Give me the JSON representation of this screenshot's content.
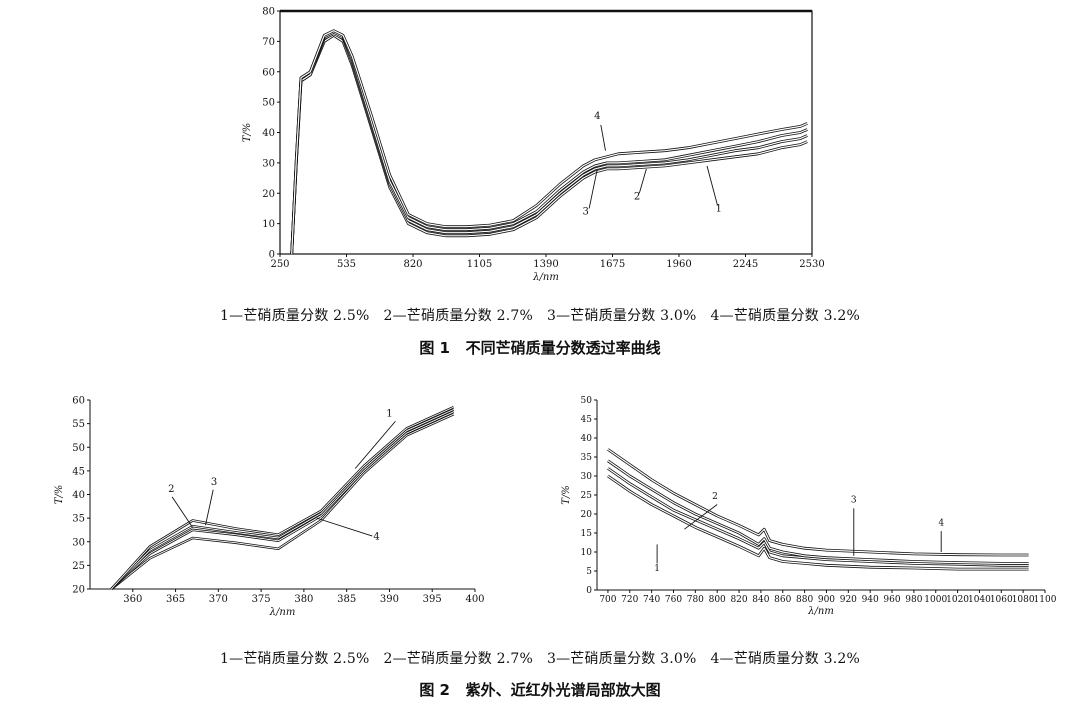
{
  "fig1": {
    "caption": "图 1   不同芒硝质量分数透过率曲线",
    "legend": "1—芒硝质量分数 2.5%   2—芒硝质量分数 2.7%   3—芒硝质量分数 3.0%   4—芒硝质量分数 3.2%"
  },
  "fig2": {
    "caption": "图 2   紫外、近红外光谱局部放大图",
    "legend": "1—芒硝质量分数 2.5%   2—芒硝质量分数 2.7%   3—芒硝质量分数 3.0%   4—芒硝质量分数 3.2%"
  },
  "chart_data": [
    {
      "id": "fig1-main",
      "type": "line",
      "title": "不同芒硝质量分数透过率曲线",
      "xlabel": "λ/nm",
      "ylabel": "T/%",
      "xlim": [
        250,
        2530
      ],
      "ylim": [
        0,
        80
      ],
      "xticks": [
        250,
        535,
        820,
        1105,
        1390,
        1675,
        1960,
        2245,
        2530
      ],
      "yticks": [
        0,
        10,
        20,
        30,
        40,
        50,
        60,
        70,
        80
      ],
      "grid": false,
      "legend": "bottom caption",
      "series": [
        {
          "name": "1",
          "x": [
            300,
            320,
            340,
            380,
            440,
            480,
            520,
            560,
            640,
            720,
            800,
            880,
            960,
            1050,
            1150,
            1250,
            1350,
            1450,
            1550,
            1600,
            1650,
            1700,
            1800,
            1900,
            2000,
            2100,
            2200,
            2300,
            2400,
            2480,
            2510
          ],
          "y": [
            0,
            30,
            57,
            59,
            70,
            72,
            70,
            62,
            42,
            22,
            10,
            7,
            6,
            6,
            6.5,
            8,
            12,
            19,
            25,
            27,
            28,
            28,
            28.5,
            29,
            30,
            31,
            32,
            33,
            35,
            36,
            37
          ]
        },
        {
          "name": "2",
          "x": [
            300,
            320,
            340,
            380,
            440,
            480,
            520,
            560,
            640,
            720,
            800,
            880,
            960,
            1050,
            1150,
            1250,
            1350,
            1450,
            1550,
            1600,
            1650,
            1700,
            1800,
            1900,
            2000,
            2100,
            2200,
            2300,
            2400,
            2480,
            2510
          ],
          "y": [
            0,
            30,
            57,
            59,
            71,
            72.5,
            71,
            63,
            43,
            23,
            11,
            8,
            7,
            7,
            7.5,
            9,
            13,
            20,
            26,
            28,
            29,
            29,
            29.5,
            30,
            31,
            32.5,
            34,
            35,
            37,
            38,
            39
          ]
        },
        {
          "name": "3",
          "x": [
            300,
            320,
            340,
            380,
            440,
            480,
            520,
            560,
            640,
            720,
            800,
            880,
            960,
            1050,
            1150,
            1250,
            1350,
            1450,
            1550,
            1600,
            1650,
            1700,
            1800,
            1900,
            2000,
            2100,
            2200,
            2300,
            2400,
            2480,
            2510
          ],
          "y": [
            0,
            31,
            58,
            60,
            71.5,
            73,
            71.5,
            64,
            44,
            24,
            12,
            9,
            8,
            8,
            8.5,
            10,
            14,
            21,
            27,
            29,
            30,
            30,
            30.5,
            31,
            32.5,
            34,
            35.5,
            37,
            39,
            40,
            41
          ]
        },
        {
          "name": "4",
          "x": [
            300,
            320,
            340,
            380,
            440,
            480,
            520,
            560,
            640,
            720,
            800,
            880,
            960,
            1050,
            1150,
            1250,
            1350,
            1450,
            1550,
            1600,
            1650,
            1700,
            1800,
            1900,
            2000,
            2100,
            2200,
            2300,
            2400,
            2480,
            2510
          ],
          "y": [
            0,
            31,
            58,
            60,
            72,
            73.5,
            72,
            65,
            46,
            26,
            13,
            10,
            9,
            9,
            9.5,
            11,
            16,
            23,
            29,
            31,
            32,
            33,
            33.5,
            34,
            35,
            36.5,
            38,
            39.5,
            41,
            42,
            43
          ]
        }
      ],
      "annotations": [
        {
          "text": "4",
          "x": 1610,
          "y": 44.5
        },
        {
          "text": "3",
          "x": 1560,
          "y": 13
        },
        {
          "text": "2",
          "x": 1780,
          "y": 18
        },
        {
          "text": "1",
          "x": 2130,
          "y": 14
        }
      ]
    },
    {
      "id": "fig2-left",
      "type": "line",
      "xlabel": "λ/nm",
      "ylabel": "T/%",
      "xlim": [
        355,
        400
      ],
      "ylim": [
        20,
        60
      ],
      "xticks": [
        360,
        365,
        370,
        375,
        380,
        385,
        390,
        395,
        400
      ],
      "yticks": [
        20,
        25,
        30,
        35,
        40,
        45,
        50,
        55,
        60
      ],
      "grid": false,
      "series": [
        {
          "name": "1",
          "x": [
            357.5,
            362,
            367,
            372,
            377,
            382,
            387,
            392,
            397.5
          ],
          "y": [
            20,
            26.5,
            30.8,
            29.8,
            28.5,
            34.5,
            44.5,
            52.5,
            57
          ]
        },
        {
          "name": "2",
          "x": [
            357.5,
            362,
            367,
            372,
            377,
            382,
            387,
            392,
            397.5
          ],
          "y": [
            20,
            27.5,
            32.5,
            31.5,
            30.2,
            35.5,
            45,
            53,
            57.5
          ]
        },
        {
          "name": "3",
          "x": [
            357.5,
            362,
            367,
            372,
            377,
            382,
            387,
            392,
            397.5
          ],
          "y": [
            20,
            28.2,
            33.3,
            32,
            30.8,
            36,
            45.5,
            53.5,
            58
          ]
        },
        {
          "name": "4",
          "x": [
            357.5,
            362,
            367,
            372,
            377,
            382,
            387,
            392,
            397.5
          ],
          "y": [
            20,
            29,
            34.5,
            32.8,
            31.5,
            36.5,
            46,
            54,
            58.5
          ]
        }
      ],
      "annotations": [
        {
          "text": "1",
          "x": 390,
          "y": 56.5
        },
        {
          "text": "2",
          "x": 364.5,
          "y": 40.5
        },
        {
          "text": "3",
          "x": 369.5,
          "y": 42
        },
        {
          "text": "4",
          "x": 388.5,
          "y": 30.5
        }
      ]
    },
    {
      "id": "fig2-right",
      "type": "line",
      "xlabel": "λ/nm",
      "ylabel": "T/%",
      "xlim": [
        690,
        1100
      ],
      "ylim": [
        0,
        50
      ],
      "xticks": [
        700,
        720,
        740,
        760,
        780,
        800,
        820,
        840,
        860,
        880,
        900,
        920,
        940,
        960,
        980,
        1000,
        1020,
        1040,
        1060,
        1080,
        1100
      ],
      "yticks": [
        0,
        5,
        10,
        15,
        20,
        25,
        30,
        35,
        40,
        45,
        50
      ],
      "grid": false,
      "series": [
        {
          "name": "1",
          "x": [
            700,
            720,
            740,
            760,
            780,
            800,
            820,
            838,
            843,
            848,
            860,
            880,
            900,
            940,
            980,
            1020,
            1060,
            1085
          ],
          "y": [
            30,
            26,
            22.5,
            19.5,
            16.5,
            14,
            11.5,
            9,
            11,
            8.5,
            7.5,
            7,
            6.5,
            6,
            5.8,
            5.5,
            5.5,
            5.5
          ]
        },
        {
          "name": "2",
          "x": [
            700,
            720,
            740,
            760,
            780,
            800,
            820,
            838,
            843,
            848,
            860,
            880,
            900,
            940,
            980,
            1020,
            1060,
            1085
          ],
          "y": [
            32,
            28,
            24.5,
            21,
            18.5,
            16,
            13.5,
            11,
            12.5,
            10,
            9,
            8.5,
            8,
            7.5,
            7,
            6.8,
            6.5,
            6.5
          ]
        },
        {
          "name": "3",
          "x": [
            700,
            720,
            740,
            760,
            780,
            800,
            820,
            838,
            843,
            848,
            860,
            880,
            900,
            940,
            980,
            1020,
            1060,
            1085
          ],
          "y": [
            34,
            30,
            26.5,
            23,
            20,
            17.5,
            15,
            12,
            13.5,
            11,
            10,
            9,
            8.5,
            8,
            7.5,
            7.2,
            7,
            7
          ]
        },
        {
          "name": "4",
          "x": [
            700,
            720,
            740,
            760,
            780,
            800,
            820,
            838,
            843,
            848,
            860,
            880,
            900,
            940,
            980,
            1020,
            1060,
            1085
          ],
          "y": [
            37,
            33,
            29,
            25.5,
            22.5,
            19.5,
            17,
            14.5,
            16,
            13,
            12,
            11,
            10.5,
            10,
            9.5,
            9.3,
            9.2,
            9.2
          ]
        }
      ],
      "annotations": [
        {
          "text": "1",
          "x": 745,
          "y": 5
        },
        {
          "text": "2",
          "x": 798,
          "y": 24
        },
        {
          "text": "3",
          "x": 925,
          "y": 23
        },
        {
          "text": "4",
          "x": 1005,
          "y": 17
        }
      ]
    }
  ]
}
